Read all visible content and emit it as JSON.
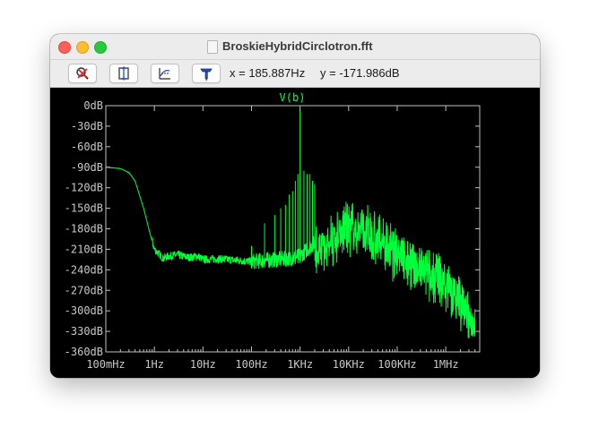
{
  "window": {
    "title": "BroskieHybridCirclotron.fft"
  },
  "toolbar": {
    "buttons": [
      {
        "name": "zoom-cancel",
        "icon": "magnifier-cancel-icon"
      },
      {
        "name": "autorange-y",
        "icon": "autorange-y-icon"
      },
      {
        "name": "autorange-x",
        "icon": "autorange-x-icon"
      },
      {
        "name": "probe",
        "icon": "probe-icon"
      }
    ],
    "cursor_x": "x = 185.887Hz",
    "cursor_y": "y = -171.986dB"
  },
  "colors": {
    "trace": "#00ff3c",
    "background": "#000000",
    "frame": "#c0c0c0",
    "axis_text": "#c8c8c8",
    "titlebar": "#ececec"
  },
  "chart_data": {
    "type": "line",
    "title": "V(b)",
    "xscale": "log",
    "xlim": [
      0.1,
      5000000
    ],
    "ylim": [
      -360,
      0
    ],
    "x_tick_labels": [
      "100mHz",
      "1Hz",
      "10Hz",
      "100Hz",
      "1KHz",
      "10KHz",
      "100KHz",
      "1MHz"
    ],
    "x_tick_values": [
      0.1,
      1,
      10,
      100,
      1000,
      10000,
      100000,
      1000000
    ],
    "y_tick_labels": [
      "0dB",
      "-30dB",
      "-60dB",
      "-90dB",
      "-120dB",
      "-150dB",
      "-180dB",
      "-210dB",
      "-240dB",
      "-270dB",
      "-300dB",
      "-330dB",
      "-360dB"
    ],
    "y_tick_values": [
      0,
      -30,
      -60,
      -90,
      -120,
      -150,
      -180,
      -210,
      -240,
      -270,
      -300,
      -330,
      -360
    ],
    "series": [
      {
        "name": "V(b)",
        "x": [
          0.1,
          0.2,
          0.3,
          0.4,
          0.6,
          0.8,
          1,
          1.5,
          2,
          3,
          5,
          8,
          10,
          20,
          50,
          100,
          200,
          500,
          1000,
          2000,
          5000,
          10000,
          20000,
          50000,
          100000,
          200000,
          500000,
          1000000,
          2000000,
          4000000
        ],
        "y": [
          -90,
          -92,
          -98,
          -110,
          -150,
          -185,
          -210,
          -223,
          -220,
          -218,
          -222,
          -220,
          -225,
          -224,
          -226,
          -228,
          -226,
          -224,
          -220,
          -200,
          -175,
          -160,
          -165,
          -185,
          -200,
          -215,
          -230,
          -245,
          -270,
          -300
        ]
      }
    ],
    "peaks": [
      {
        "x": 100,
        "y": -205
      },
      {
        "x": 185.887,
        "y": -171.986
      },
      {
        "x": 300,
        "y": -160
      },
      {
        "x": 400,
        "y": -150
      },
      {
        "x": 500,
        "y": -145
      },
      {
        "x": 600,
        "y": -130
      },
      {
        "x": 700,
        "y": -125
      },
      {
        "x": 800,
        "y": -110
      },
      {
        "x": 900,
        "y": -100
      },
      {
        "x": 1000,
        "y": -5
      },
      {
        "x": 1200,
        "y": -95
      },
      {
        "x": 1400,
        "y": -100
      },
      {
        "x": 1600,
        "y": -100
      },
      {
        "x": 1800,
        "y": -110
      },
      {
        "x": 2000,
        "y": -115
      }
    ],
    "grid": false,
    "legend": "top-center"
  }
}
